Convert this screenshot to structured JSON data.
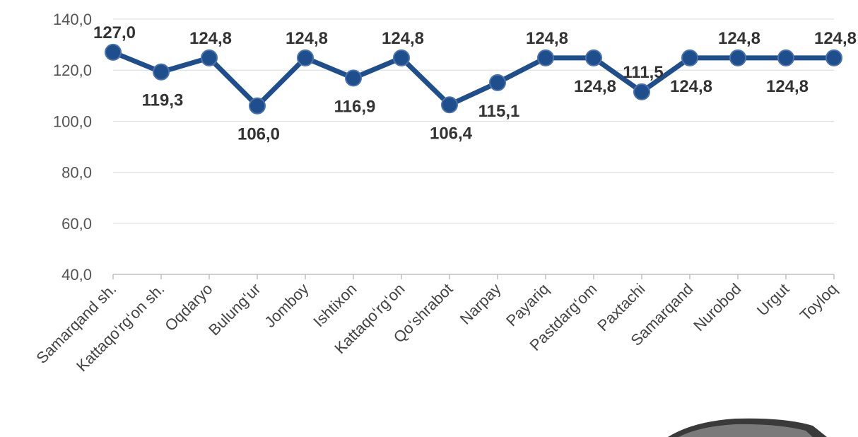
{
  "chart_data": {
    "type": "line",
    "categories": [
      "Samarqand sh.",
      "Kattaqo‘rg‘on  sh.",
      "Oqdaryo",
      "Bulung‘ur",
      "Jomboy",
      "Ishtixon",
      "Kattaqo‘rg‘on",
      "Qo‘shrabot",
      "Narpay",
      "Payariq",
      "Pastdarg‘om",
      "Paxtachi",
      "Samarqand",
      "Nurobod",
      "Urgut",
      "Toyloq"
    ],
    "values": [
      127.0,
      119.3,
      124.8,
      106.0,
      124.8,
      116.9,
      124.8,
      106.4,
      115.1,
      124.8,
      124.8,
      111.5,
      124.8,
      124.8,
      124.8,
      124.8
    ],
    "value_labels": [
      "127,0",
      "119,3",
      "124,8",
      "106,0",
      "124,8",
      "116,9",
      "124,8",
      "106,4",
      "115,1",
      "124,8",
      "124,8",
      "111,5",
      "124,8",
      "124,8",
      "124,8",
      "124,8"
    ],
    "label_positions": [
      "above",
      "below",
      "above",
      "below",
      "above",
      "below",
      "above",
      "below",
      "below",
      "above",
      "below",
      "above",
      "below",
      "above",
      "below",
      "above"
    ],
    "yticks": [
      "40,0",
      "60,0",
      "80,0",
      "100,0",
      "120,0",
      "140,0"
    ],
    "ylim": [
      40,
      140
    ],
    "title": "",
    "xlabel": "",
    "ylabel": "",
    "grid": true,
    "legend": "none",
    "line_color": "#1f4e8c",
    "marker_color": "#1f4e8c"
  }
}
